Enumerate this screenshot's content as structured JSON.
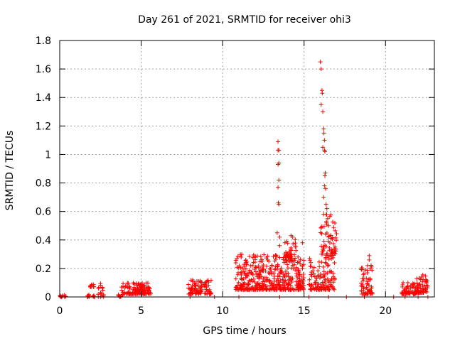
{
  "chart_data": {
    "type": "scatter",
    "title": "Day 261 of 2021, SRMTID for receiver ohi3",
    "xlabel": "GPS time / hours",
    "ylabel": "SRMTID / TECUs",
    "xlim": [
      0,
      23
    ],
    "ylim": [
      0,
      1.8
    ],
    "xticks": [
      0,
      5,
      10,
      15,
      20
    ],
    "yticks": [
      0,
      0.2,
      0.4,
      0.6,
      0.8,
      1,
      1.2,
      1.4,
      1.6,
      1.8
    ],
    "ytick_labels": [
      "0",
      "0.2",
      "0.4",
      "0.6",
      "0.8",
      "1",
      "1.2",
      "1.4",
      "1.6",
      "1.8"
    ],
    "grid": true,
    "marker": "+",
    "color": "#ff0000",
    "clusters": [
      {
        "x": [
          0.0,
          0.4
        ],
        "y": [
          0.0,
          0.02
        ],
        "n": 8
      },
      {
        "x": [
          1.7,
          2.2
        ],
        "y": [
          0.0,
          0.02
        ],
        "n": 10
      },
      {
        "x": [
          1.85,
          2.1
        ],
        "y": [
          0.07,
          0.11
        ],
        "n": 10
      },
      {
        "x": [
          2.35,
          2.7
        ],
        "y": [
          0.0,
          0.11
        ],
        "n": 16
      },
      {
        "x": [
          3.6,
          3.9
        ],
        "y": [
          0.0,
          0.02
        ],
        "n": 8
      },
      {
        "x": [
          3.8,
          5.6
        ],
        "y": [
          0.02,
          0.1
        ],
        "n": 130
      },
      {
        "x": [
          7.9,
          9.3
        ],
        "y": [
          0.02,
          0.12
        ],
        "n": 90
      },
      {
        "x": [
          10.8,
          15.0
        ],
        "y": [
          0.05,
          0.3
        ],
        "n": 420
      },
      {
        "x": [
          13.8,
          14.5
        ],
        "y": [
          0.25,
          0.43
        ],
        "n": 40
      },
      {
        "x": [
          15.3,
          16.9
        ],
        "y": [
          0.05,
          0.3
        ],
        "n": 120
      },
      {
        "x": [
          16.0,
          17.0
        ],
        "y": [
          0.3,
          0.58
        ],
        "n": 60
      },
      {
        "x": [
          18.5,
          19.2
        ],
        "y": [
          0.02,
          0.25
        ],
        "n": 60
      },
      {
        "x": [
          21.0,
          22.0
        ],
        "y": [
          0.02,
          0.1
        ],
        "n": 70
      },
      {
        "x": [
          21.9,
          22.6
        ],
        "y": [
          0.03,
          0.16
        ],
        "n": 60
      }
    ],
    "points": [
      [
        0.1,
        0.0
      ],
      [
        0.3,
        0.0
      ],
      [
        1.7,
        0.0
      ],
      [
        2.1,
        0.0
      ],
      [
        3.7,
        0.0
      ],
      [
        8.0,
        0.0
      ],
      [
        9.5,
        0.0
      ],
      [
        11.0,
        0.0
      ],
      [
        13.5,
        0.0
      ],
      [
        15.3,
        0.0
      ],
      [
        16.5,
        0.0
      ],
      [
        17.6,
        0.0
      ],
      [
        18.7,
        0.0
      ],
      [
        20.5,
        0.0
      ],
      [
        21.2,
        0.0
      ],
      [
        22.0,
        0.0
      ],
      [
        22.6,
        0.0
      ],
      [
        13.4,
        1.09
      ],
      [
        13.4,
        1.03
      ],
      [
        13.45,
        1.03
      ],
      [
        13.45,
        0.94
      ],
      [
        13.4,
        0.93
      ],
      [
        13.45,
        0.82
      ],
      [
        13.4,
        0.77
      ],
      [
        13.42,
        0.66
      ],
      [
        13.45,
        0.65
      ],
      [
        13.35,
        0.45
      ],
      [
        13.5,
        0.42
      ],
      [
        13.5,
        0.36
      ],
      [
        14.9,
        0.38
      ],
      [
        14.3,
        0.42
      ],
      [
        14.2,
        0.43
      ],
      [
        16.0,
        1.65
      ],
      [
        16.05,
        1.6
      ],
      [
        16.1,
        1.45
      ],
      [
        16.12,
        1.43
      ],
      [
        16.05,
        1.35
      ],
      [
        16.15,
        1.3
      ],
      [
        16.2,
        1.18
      ],
      [
        16.22,
        1.15
      ],
      [
        16.25,
        1.1
      ],
      [
        16.15,
        1.05
      ],
      [
        16.25,
        1.03
      ],
      [
        16.28,
        1.02
      ],
      [
        16.3,
        0.87
      ],
      [
        16.28,
        0.85
      ],
      [
        16.25,
        0.78
      ],
      [
        16.32,
        0.76
      ],
      [
        16.2,
        0.7
      ],
      [
        16.35,
        0.65
      ],
      [
        16.4,
        0.62
      ],
      [
        16.45,
        0.55
      ],
      [
        16.2,
        0.58
      ],
      [
        16.38,
        0.52
      ],
      [
        16.5,
        0.5
      ],
      [
        19.0,
        0.29
      ],
      [
        19.0,
        0.26
      ],
      [
        18.9,
        0.22
      ],
      [
        19.05,
        0.2
      ]
    ]
  }
}
